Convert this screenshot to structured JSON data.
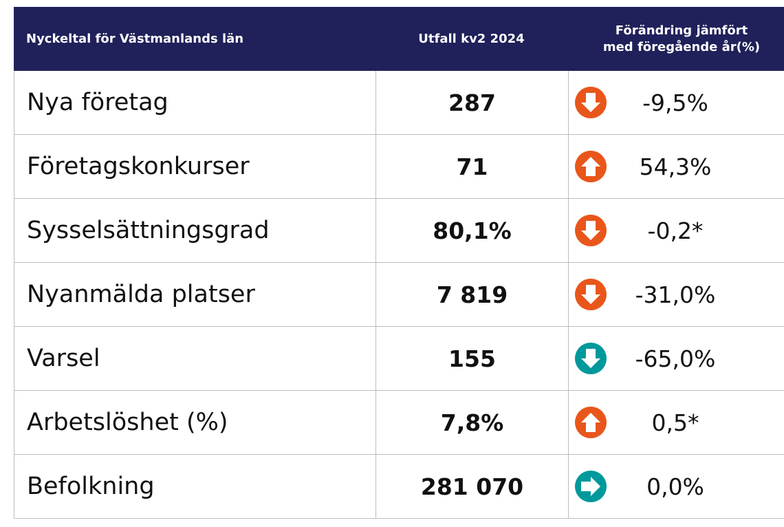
{
  "table": {
    "header": [
      "Nyckeltal för Västmanlands län",
      "Utfall kv2 2024",
      [
        "Förändring jämfört",
        "med föregående år(%)"
      ]
    ],
    "rows": [
      [
        "Nya företag",
        "287",
        "-9,5%"
      ],
      [
        "Företagskonkurser",
        "71",
        "54,3%"
      ],
      [
        "Sysselsättningsgrad",
        "80,1%",
        "-0,2*"
      ],
      [
        "Nyanmälda platser",
        "7 819",
        "-31,0%"
      ],
      [
        "Varsel",
        "155",
        "-65,0%"
      ],
      [
        "Arbetslöshet (%)",
        "7,8%",
        "0,5*"
      ],
      [
        "Befolkning",
        "281 070",
        "0,0%"
      ]
    ]
  }
}
